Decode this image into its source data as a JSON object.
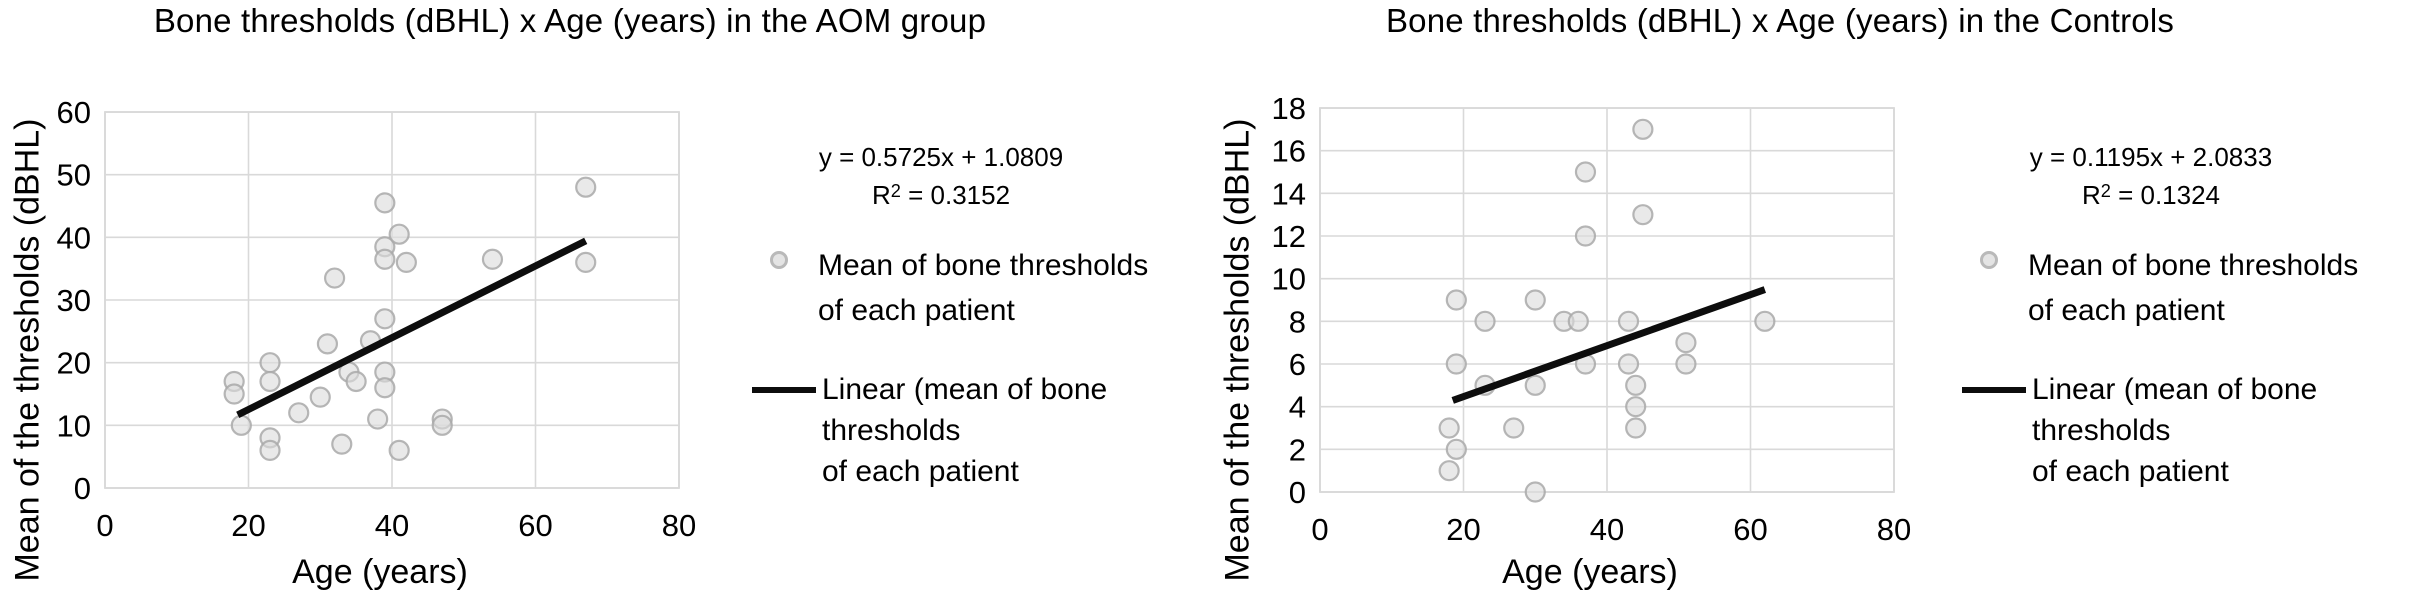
{
  "colors": {
    "background": "#ffffff",
    "grid": "#d9d9d9",
    "marker_fill": "#dcdcdc",
    "marker_stroke": "#a9a9a9",
    "trendline": "#0d0d0d",
    "text": "#000000"
  },
  "chart_data": [
    {
      "type": "scatter",
      "title": "Bone thresholds (dBHL) x Age (years) in the AOM group",
      "xlabel": "Age (years)",
      "ylabel": "Mean of the thresholds (dBHL)",
      "xlim": [
        0,
        80
      ],
      "ylim": [
        0,
        60
      ],
      "x_ticks": [
        0,
        20,
        40,
        60,
        80
      ],
      "y_ticks": [
        0,
        10,
        20,
        30,
        40,
        50,
        60
      ],
      "grid": true,
      "legend_position": "right",
      "equation": "y = 0.5725x + 1.0809",
      "r2_prefix": "R",
      "r2_sup": "2",
      "r2_suffix": " = 0.3152",
      "legend_scatter": [
        "Mean of bone thresholds",
        "of each patient"
      ],
      "legend_linear": [
        "Linear (mean of bone",
        "thresholds",
        "of each patient"
      ],
      "points": [
        [
          18,
          17
        ],
        [
          18,
          15
        ],
        [
          19,
          10
        ],
        [
          23,
          20
        ],
        [
          23,
          17
        ],
        [
          23,
          8
        ],
        [
          23,
          6
        ],
        [
          27,
          12
        ],
        [
          30,
          14.5
        ],
        [
          31,
          23
        ],
        [
          32,
          33.5
        ],
        [
          33,
          7
        ],
        [
          34,
          18.5
        ],
        [
          35,
          17
        ],
        [
          37,
          23.5
        ],
        [
          38,
          11
        ],
        [
          39,
          45.5
        ],
        [
          39,
          38.5
        ],
        [
          39,
          36.5
        ],
        [
          39,
          27
        ],
        [
          39,
          18.5
        ],
        [
          39,
          16
        ],
        [
          41,
          40.5
        ],
        [
          41,
          6
        ],
        [
          42,
          36
        ],
        [
          47,
          11
        ],
        [
          47,
          10
        ],
        [
          54,
          36.5
        ],
        [
          67,
          48
        ],
        [
          67,
          36
        ]
      ],
      "trendline": {
        "x1": 18.5,
        "y1": 11.67,
        "x2": 67,
        "y2": 39.44
      }
    },
    {
      "type": "scatter",
      "title": "Bone thresholds (dBHL) x Age (years) in the Controls",
      "xlabel": "Age (years)",
      "ylabel": "Mean of the thresholds (dBHL)",
      "xlim": [
        0,
        80
      ],
      "ylim": [
        0,
        18
      ],
      "x_ticks": [
        0,
        20,
        40,
        60,
        80
      ],
      "y_ticks": [
        0,
        2,
        4,
        6,
        8,
        10,
        12,
        14,
        16,
        18
      ],
      "grid": true,
      "legend_position": "right",
      "equation": "y = 0.1195x + 2.0833",
      "r2_prefix": "R",
      "r2_sup": "2",
      "r2_suffix": " = 0.1324",
      "legend_scatter": [
        "Mean of bone thresholds",
        "of each patient"
      ],
      "legend_linear": [
        "Linear (mean of bone",
        "thresholds",
        "of each patient"
      ],
      "points": [
        [
          45,
          17
        ],
        [
          37,
          15
        ],
        [
          45,
          13
        ],
        [
          37,
          12
        ],
        [
          19,
          9
        ],
        [
          30,
          9
        ],
        [
          23,
          8
        ],
        [
          34,
          8
        ],
        [
          36,
          8
        ],
        [
          43,
          8
        ],
        [
          62,
          8
        ],
        [
          51,
          7
        ],
        [
          19,
          6
        ],
        [
          37,
          6
        ],
        [
          43,
          6
        ],
        [
          51,
          6
        ],
        [
          23,
          5
        ],
        [
          30,
          5
        ],
        [
          44,
          5
        ],
        [
          44,
          4
        ],
        [
          18,
          3
        ],
        [
          27,
          3
        ],
        [
          44,
          3
        ],
        [
          19,
          2
        ],
        [
          18,
          1
        ],
        [
          30,
          0
        ]
      ],
      "trendline": {
        "x1": 18.5,
        "y1": 4.29,
        "x2": 62,
        "y2": 9.49
      }
    }
  ]
}
